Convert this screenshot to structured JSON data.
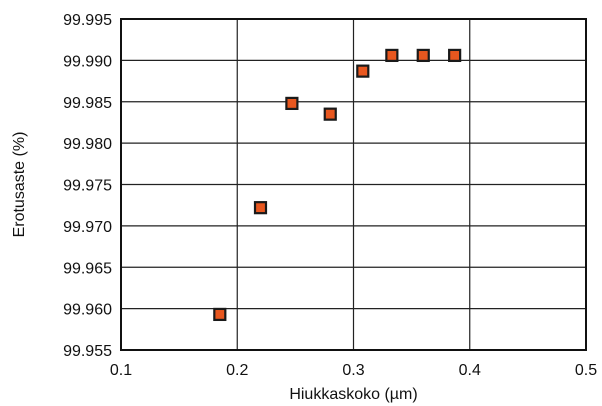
{
  "chart_data": {
    "type": "scatter",
    "title": "",
    "xlabel": "Hiukkaskoko (µm)",
    "ylabel": "Erotusaste (%)",
    "xlim": [
      0.1,
      0.5
    ],
    "ylim": [
      99.955,
      99.995
    ],
    "x_ticks": [
      "0.1",
      "0.2",
      "0.3",
      "0.4",
      "0.5"
    ],
    "y_ticks": [
      "99.955",
      "99.960",
      "99.965",
      "99.970",
      "99.975",
      "99.980",
      "99.985",
      "99.990",
      "99.995"
    ],
    "grid": true,
    "legend": "none",
    "marker_color": "#e8571f",
    "marker_edge_color": "#1a1a1a",
    "series": [
      {
        "x": [
          0.185,
          0.22,
          0.247,
          0.28,
          0.308,
          0.333,
          0.36,
          0.387
        ],
        "y": [
          99.9593,
          99.9722,
          99.9848,
          99.9835,
          99.9887,
          99.9906,
          99.9906,
          99.9906
        ]
      }
    ]
  }
}
